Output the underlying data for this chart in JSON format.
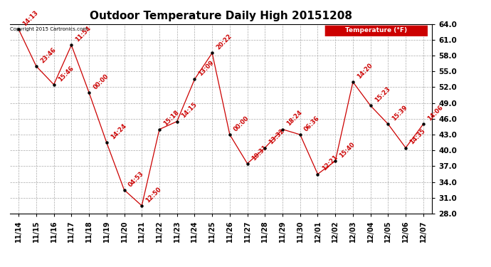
{
  "title": "Outdoor Temperature Daily High 20151208",
  "copyright": "Copyright 2015 Cartronics.com",
  "legend_label": "Temperature (°F)",
  "x_labels": [
    "11/14",
    "11/15",
    "11/16",
    "11/17",
    "11/18",
    "11/19",
    "11/20",
    "11/21",
    "11/22",
    "11/23",
    "11/24",
    "11/25",
    "11/26",
    "11/27",
    "11/28",
    "11/29",
    "11/30",
    "12/01",
    "12/02",
    "12/03",
    "12/04",
    "12/05",
    "12/06",
    "12/07"
  ],
  "y_values": [
    63.0,
    56.0,
    52.5,
    60.0,
    51.0,
    41.5,
    32.5,
    29.5,
    44.0,
    45.5,
    53.5,
    58.5,
    43.0,
    37.5,
    40.5,
    44.0,
    43.0,
    35.5,
    38.0,
    53.0,
    48.5,
    45.0,
    40.5,
    45.0
  ],
  "annotations": [
    "14:13",
    "23:46",
    "15:46",
    "11:54",
    "00:00",
    "14:24",
    "04:53",
    "12:50",
    "15:18",
    "14:15",
    "13:09",
    "20:22",
    "00:00",
    "10:31",
    "13:32",
    "18:24",
    "06:36",
    "12:21",
    "15:40",
    "14:20",
    "15:23",
    "15:39",
    "14:35",
    "14:06"
  ],
  "ylim_min": 28.0,
  "ylim_max": 64.0,
  "yticks": [
    28.0,
    31.0,
    34.0,
    37.0,
    40.0,
    43.0,
    46.0,
    49.0,
    52.0,
    55.0,
    58.0,
    61.0,
    64.0
  ],
  "line_color": "#cc0000",
  "marker_color": "#000000",
  "annotation_color": "#cc0000",
  "background_color": "#ffffff",
  "grid_color": "#aaaaaa",
  "title_fontsize": 11,
  "annotation_fontsize": 6,
  "legend_bg_color": "#cc0000",
  "legend_text_color": "#ffffff"
}
